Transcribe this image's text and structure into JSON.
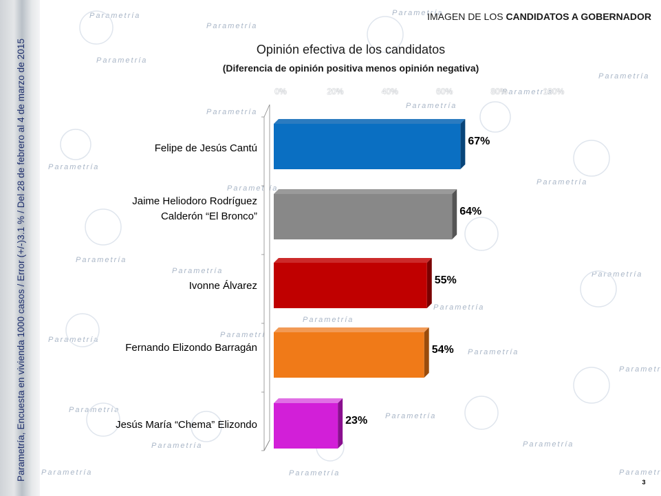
{
  "header": {
    "prefix": "IMAGEN DE LOS ",
    "bold": "CANDIDATOS A GOBERNADOR"
  },
  "side_note": "Parametría, Encuesta en vivienda 1000 casos / Error (+/-)3.1 % / Del 28 de febrero al  4 de marzo de 2015",
  "watermark": "Parametría",
  "page_number": "3",
  "chart_data": {
    "type": "bar",
    "orientation": "horizontal",
    "title": "Opinión efectiva de los candidatos",
    "subtitle": "(Diferencia de opinión positiva menos opinión negativa)",
    "xlim": [
      0,
      100
    ],
    "x_ticks": [
      "0%",
      "20%",
      "40%",
      "60%",
      "80%",
      "100%"
    ],
    "categories": [
      [
        "Felipe de Jesús Cantú"
      ],
      [
        "Jaime Heliodoro Rodríguez",
        "Calderón  “El Bronco”"
      ],
      [
        "Ivonne Álvarez"
      ],
      [
        "Fernando Elizondo Barragán"
      ],
      [
        "Jesús María “Chema” Elizondo"
      ]
    ],
    "values": [
      67,
      64,
      55,
      54,
      23
    ],
    "value_labels": [
      "67%",
      "64%",
      "55%",
      "54%",
      "23%"
    ],
    "colors": [
      "#0a6fc2",
      "#888888",
      "#c00000",
      "#f07a18",
      "#d21fd8"
    ],
    "side_colors": [
      "#08457a",
      "#555555",
      "#7a0000",
      "#9a4c0c",
      "#8a0f8f"
    ],
    "top_colors": [
      "#2b7bc0",
      "#9a9a9a",
      "#cc2a2a",
      "#f29a55",
      "#e070e5"
    ],
    "grid": false
  }
}
